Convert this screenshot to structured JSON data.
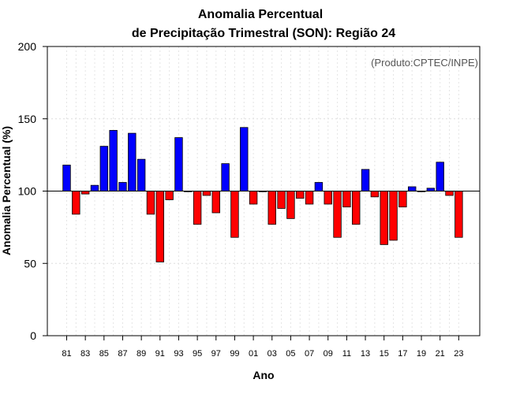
{
  "chart_data": {
    "type": "bar",
    "title": "Anomalia Percentual",
    "subtitle": "de Precipitação Trimestral (SON): Região 24",
    "xlabel": "Ano",
    "ylabel": "Anomalia Percentual (%)",
    "credit": "(Produto:CPTEC/INPE)",
    "ylim": [
      0,
      200
    ],
    "yticks": [
      0,
      50,
      100,
      150,
      200
    ],
    "baseline": 100,
    "grid": true,
    "categories": [
      "81",
      "82",
      "83",
      "84",
      "85",
      "86",
      "87",
      "88",
      "89",
      "90",
      "91",
      "92",
      "93",
      "94",
      "95",
      "96",
      "97",
      "98",
      "99",
      "00",
      "01",
      "02",
      "03",
      "04",
      "05",
      "06",
      "07",
      "08",
      "09",
      "10",
      "11",
      "12",
      "13",
      "14",
      "15",
      "16",
      "17",
      "18",
      "19",
      "20",
      "21",
      "22",
      "23"
    ],
    "xtick_labels": [
      "81",
      "83",
      "85",
      "87",
      "89",
      "91",
      "93",
      "95",
      "97",
      "99",
      "01",
      "03",
      "05",
      "07",
      "09",
      "11",
      "13",
      "15",
      "17",
      "19",
      "21",
      "23"
    ],
    "values": [
      118,
      84,
      98,
      104,
      131,
      142,
      106,
      140,
      122,
      84,
      51,
      94,
      137,
      100,
      77,
      97,
      85,
      119,
      68,
      144,
      91,
      100,
      77,
      88,
      81,
      95,
      91,
      106,
      91,
      68,
      89,
      77,
      115,
      96,
      63,
      66,
      89,
      103,
      100,
      102,
      120,
      97,
      68
    ],
    "colors": {
      "above": "#0000ff",
      "below": "#ff0000",
      "outline": "#000000"
    }
  }
}
